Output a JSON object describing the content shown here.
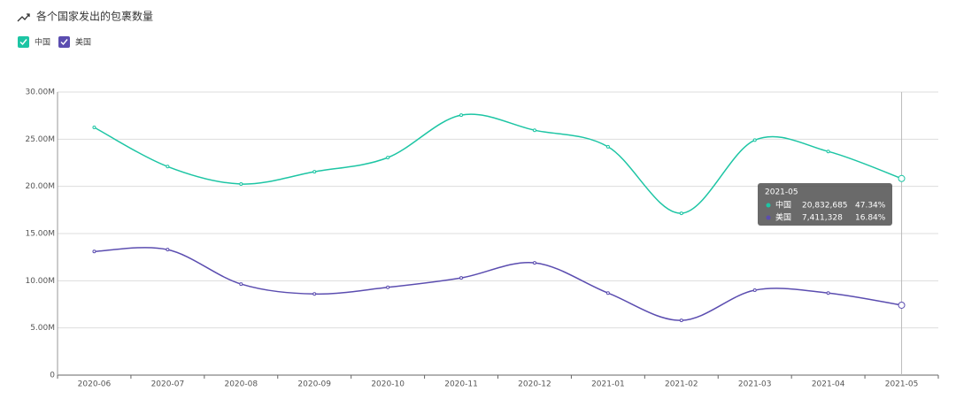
{
  "chart_data": {
    "type": "line",
    "title": "各个国家发出的包裹数量",
    "categories": [
      "2020-06",
      "2020-07",
      "2020-08",
      "2020-09",
      "2020-10",
      "2020-11",
      "2020-12",
      "2021-01",
      "2021-02",
      "2021-03",
      "2021-04",
      "2021-05"
    ],
    "series": [
      {
        "name": "中国",
        "color": "#1dc5a4",
        "values": [
          26250000,
          22100000,
          20250000,
          21550000,
          23050000,
          27550000,
          25950000,
          24200000,
          17150000,
          24900000,
          23700000,
          20832685
        ],
        "value_labels": [
          null,
          null,
          null,
          null,
          null,
          null,
          null,
          null,
          null,
          null,
          null,
          "20,832,685"
        ]
      },
      {
        "name": "美国",
        "color": "#5b4db0",
        "values": [
          13100000,
          13300000,
          9650000,
          8600000,
          9300000,
          10300000,
          11900000,
          8700000,
          5800000,
          9000000,
          8700000,
          7411328
        ],
        "value_labels": [
          null,
          null,
          null,
          null,
          null,
          null,
          null,
          null,
          null,
          null,
          null,
          "7,411,328"
        ]
      }
    ],
    "ylim": [
      0,
      30000000
    ],
    "yticks": [
      0,
      {
        "value": 5000000,
        "label": "5.00M"
      },
      {
        "value": 10000000,
        "label": "10.00M"
      },
      {
        "value": 15000000,
        "label": "15.00M"
      },
      {
        "value": 20000000,
        "label": "20.00M"
      },
      {
        "value": 25000000,
        "label": "25.00M"
      },
      {
        "value": 30000000,
        "label": "30.00M"
      }
    ],
    "grid": true,
    "smooth": true,
    "tooltip": {
      "index": 11,
      "percents": [
        "47.34%",
        "16.84%"
      ]
    }
  }
}
